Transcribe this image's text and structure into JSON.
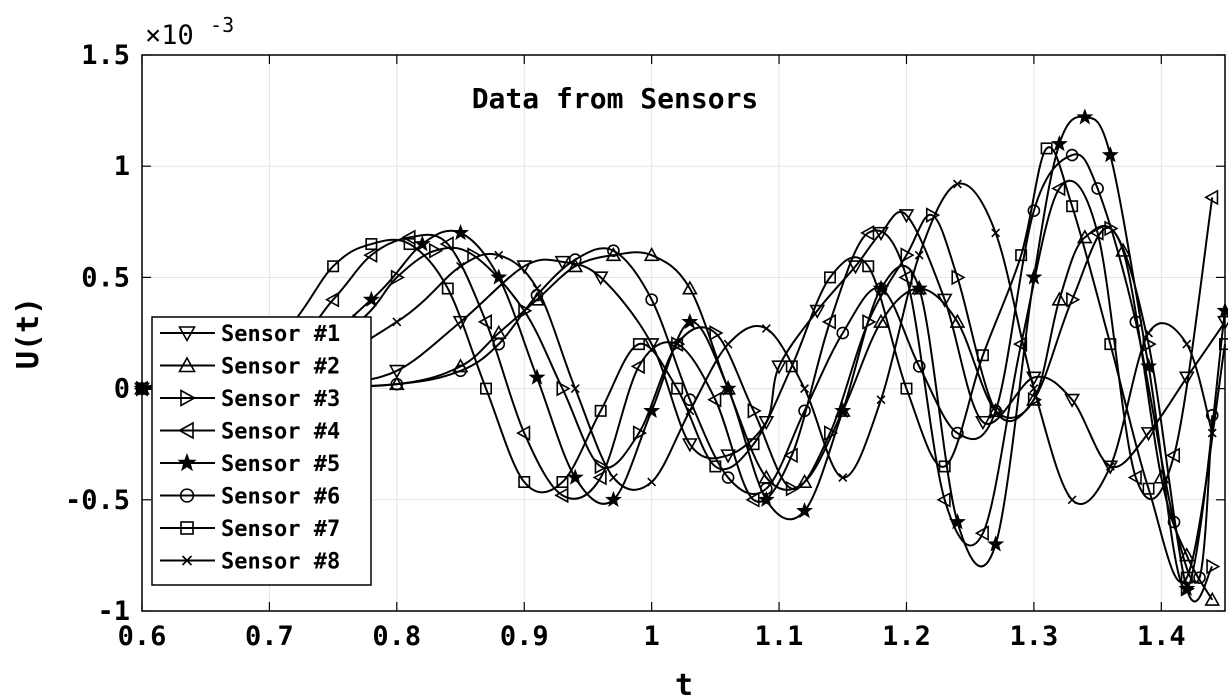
{
  "chart_data": {
    "type": "line",
    "title": "Data from Sensors",
    "xlabel": "t",
    "ylabel": "U(t)",
    "xlim": [
      0.6,
      1.45
    ],
    "ylim": [
      -1.0,
      1.5
    ],
    "y_scale_note": "×10",
    "y_scale_exp": "-3",
    "grid": true,
    "legend_position": "bottom-left",
    "x_ticks": [
      "0.6",
      "0.7",
      "0.8",
      "0.9",
      "1",
      "1.1",
      "1.2",
      "1.3",
      "1.4"
    ],
    "x_tick_values": [
      0.6,
      0.7,
      0.8,
      0.9,
      1.0,
      1.1,
      1.2,
      1.3,
      1.4
    ],
    "y_ticks": [
      "-1",
      "-0.5",
      "0",
      "0.5",
      "1",
      "1.5"
    ],
    "y_tick_values": [
      -1.0,
      -0.5,
      0.0,
      0.5,
      1.0,
      1.5
    ],
    "series": [
      {
        "name": "Sensor #1",
        "marker": "triangle-down",
        "x": [
          0.6,
          0.65,
          0.7,
          0.75,
          0.8,
          0.85,
          0.9,
          0.93,
          0.96,
          1.0,
          1.03,
          1.06,
          1.09,
          1.1,
          1.13,
          1.16,
          1.18,
          1.2,
          1.23,
          1.26,
          1.3,
          1.33,
          1.36,
          1.39,
          1.42,
          1.45
        ],
        "y": [
          0.0,
          0.0,
          0.0,
          0.02,
          0.08,
          0.3,
          0.55,
          0.57,
          0.5,
          0.2,
          -0.25,
          -0.3,
          -0.15,
          0.1,
          0.35,
          0.55,
          0.7,
          0.78,
          0.4,
          -0.15,
          0.05,
          -0.05,
          -0.35,
          -0.2,
          0.05,
          0.3
        ]
      },
      {
        "name": "Sensor #2",
        "marker": "triangle-up",
        "x": [
          0.6,
          0.7,
          0.8,
          0.85,
          0.88,
          0.91,
          0.94,
          0.97,
          1.0,
          1.03,
          1.06,
          1.09,
          1.12,
          1.15,
          1.18,
          1.21,
          1.24,
          1.27,
          1.3,
          1.32,
          1.34,
          1.37,
          1.4,
          1.42,
          1.44
        ],
        "y": [
          0.0,
          0.0,
          0.02,
          0.1,
          0.25,
          0.4,
          0.55,
          0.6,
          0.6,
          0.45,
          0.0,
          -0.4,
          -0.42,
          -0.1,
          0.3,
          0.45,
          0.3,
          -0.1,
          -0.05,
          0.4,
          0.68,
          0.62,
          -0.4,
          -0.75,
          -0.95
        ]
      },
      {
        "name": "Sensor #3",
        "marker": "triangle-right",
        "x": [
          0.6,
          0.7,
          0.77,
          0.8,
          0.83,
          0.86,
          0.9,
          0.93,
          0.96,
          0.99,
          1.02,
          1.05,
          1.08,
          1.11,
          1.14,
          1.17,
          1.2,
          1.22,
          1.24,
          1.27,
          1.3,
          1.33,
          1.36,
          1.39,
          1.42,
          1.44
        ],
        "y": [
          0.0,
          0.05,
          0.3,
          0.5,
          0.62,
          0.6,
          0.35,
          0.0,
          -0.35,
          -0.2,
          0.2,
          0.25,
          -0.1,
          -0.45,
          -0.2,
          0.3,
          0.6,
          0.78,
          0.5,
          -0.1,
          -0.05,
          0.4,
          0.72,
          0.2,
          -0.9,
          -0.8
        ]
      },
      {
        "name": "Sensor #4",
        "marker": "triangle-left",
        "x": [
          0.6,
          0.7,
          0.75,
          0.78,
          0.81,
          0.84,
          0.87,
          0.9,
          0.93,
          0.96,
          0.99,
          1.02,
          1.05,
          1.08,
          1.11,
          1.14,
          1.17,
          1.2,
          1.23,
          1.26,
          1.29,
          1.32,
          1.35,
          1.38,
          1.41,
          1.44
        ],
        "y": [
          0.0,
          0.1,
          0.4,
          0.6,
          0.68,
          0.65,
          0.3,
          -0.2,
          -0.48,
          -0.4,
          0.1,
          0.2,
          -0.05,
          -0.5,
          -0.3,
          0.3,
          0.7,
          0.5,
          -0.5,
          -0.65,
          0.2,
          0.9,
          0.7,
          -0.4,
          -0.3,
          0.86
        ]
      },
      {
        "name": "Sensor #5",
        "marker": "star",
        "x": [
          0.6,
          0.7,
          0.78,
          0.82,
          0.85,
          0.88,
          0.91,
          0.94,
          0.97,
          1.0,
          1.03,
          1.06,
          1.09,
          1.12,
          1.15,
          1.18,
          1.21,
          1.24,
          1.27,
          1.3,
          1.32,
          1.34,
          1.36,
          1.39,
          1.42,
          1.45
        ],
        "y": [
          0.0,
          0.05,
          0.4,
          0.65,
          0.7,
          0.5,
          0.05,
          -0.4,
          -0.5,
          -0.1,
          0.3,
          0.0,
          -0.5,
          -0.55,
          -0.1,
          0.45,
          0.45,
          -0.6,
          -0.7,
          0.5,
          1.1,
          1.22,
          1.05,
          0.1,
          -0.9,
          0.35
        ]
      },
      {
        "name": "Sensor #6",
        "marker": "circle",
        "x": [
          0.6,
          0.7,
          0.8,
          0.85,
          0.88,
          0.91,
          0.94,
          0.97,
          1.0,
          1.03,
          1.06,
          1.09,
          1.12,
          1.15,
          1.18,
          1.21,
          1.24,
          1.27,
          1.3,
          1.33,
          1.35,
          1.38,
          1.41,
          1.43,
          1.44
        ],
        "y": [
          0.0,
          0.0,
          0.02,
          0.08,
          0.2,
          0.42,
          0.58,
          0.62,
          0.4,
          -0.05,
          -0.4,
          -0.45,
          -0.1,
          0.25,
          0.45,
          0.1,
          -0.2,
          -0.1,
          0.8,
          1.05,
          0.9,
          0.3,
          -0.6,
          -0.85,
          -0.12
        ]
      },
      {
        "name": "Sensor #7",
        "marker": "square",
        "x": [
          0.6,
          0.7,
          0.75,
          0.78,
          0.81,
          0.84,
          0.87,
          0.9,
          0.93,
          0.96,
          0.99,
          1.02,
          1.05,
          1.08,
          1.11,
          1.14,
          1.17,
          1.2,
          1.23,
          1.26,
          1.29,
          1.31,
          1.33,
          1.36,
          1.39,
          1.42,
          1.45
        ],
        "y": [
          0.0,
          0.2,
          0.55,
          0.65,
          0.65,
          0.45,
          0.0,
          -0.42,
          -0.42,
          -0.1,
          0.2,
          0.0,
          -0.35,
          -0.25,
          0.1,
          0.5,
          0.55,
          0.0,
          -0.35,
          0.15,
          0.6,
          1.08,
          0.82,
          0.2,
          -0.45,
          -0.85,
          0.2
        ]
      },
      {
        "name": "Sensor #8",
        "marker": "x",
        "x": [
          0.6,
          0.7,
          0.8,
          0.85,
          0.88,
          0.91,
          0.94,
          0.97,
          1.0,
          1.03,
          1.06,
          1.09,
          1.12,
          1.15,
          1.18,
          1.21,
          1.24,
          1.27,
          1.3,
          1.33,
          1.36,
          1.39,
          1.42,
          1.44
        ],
        "y": [
          0.0,
          0.0,
          0.3,
          0.55,
          0.6,
          0.45,
          0.0,
          -0.4,
          -0.42,
          -0.1,
          0.2,
          0.27,
          0.0,
          -0.4,
          -0.05,
          0.6,
          0.92,
          0.7,
          0.0,
          -0.5,
          -0.35,
          0.25,
          0.2,
          -0.2
        ]
      }
    ]
  }
}
